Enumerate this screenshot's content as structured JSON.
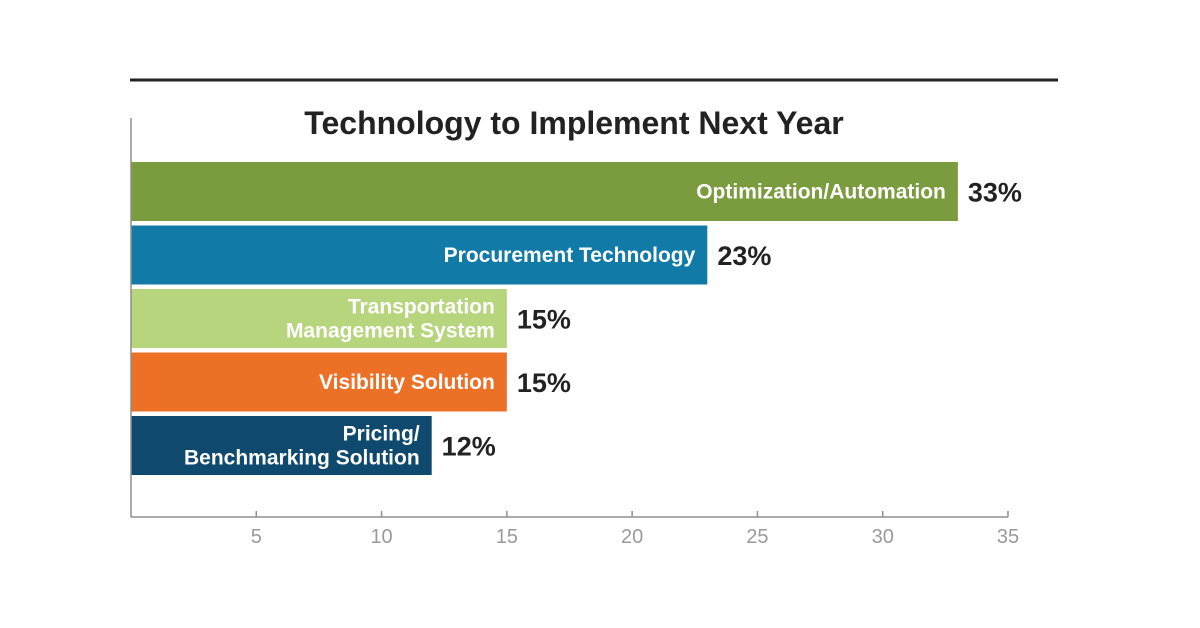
{
  "chart_data": {
    "type": "bar",
    "orientation": "horizontal",
    "title": "Technology to Implement Next Year",
    "categories": [
      "Optimization/Automation",
      "Procurement Technology",
      "Transportation Management System",
      "Visibility Solution",
      "Pricing/ Benchmarking Solution"
    ],
    "category_label_lines": [
      [
        "Optimization/Automation"
      ],
      [
        "Procurement Technology"
      ],
      [
        "Transportation",
        "Management System"
      ],
      [
        "Visibility Solution"
      ],
      [
        "Pricing/",
        "Benchmarking Solution"
      ]
    ],
    "values": [
      33,
      23,
      15,
      15,
      12
    ],
    "value_labels": [
      "33%",
      "23%",
      "15%",
      "15%",
      "12%"
    ],
    "colors": [
      "#7a9c3e",
      "#127aa6",
      "#b6d57c",
      "#ed7027",
      "#0f4a6e"
    ],
    "xlim": [
      0,
      35
    ],
    "xticks": [
      5,
      10,
      15,
      20,
      25,
      30,
      35
    ],
    "xlabel": "",
    "ylabel": "",
    "grid": false,
    "legend": "none"
  }
}
